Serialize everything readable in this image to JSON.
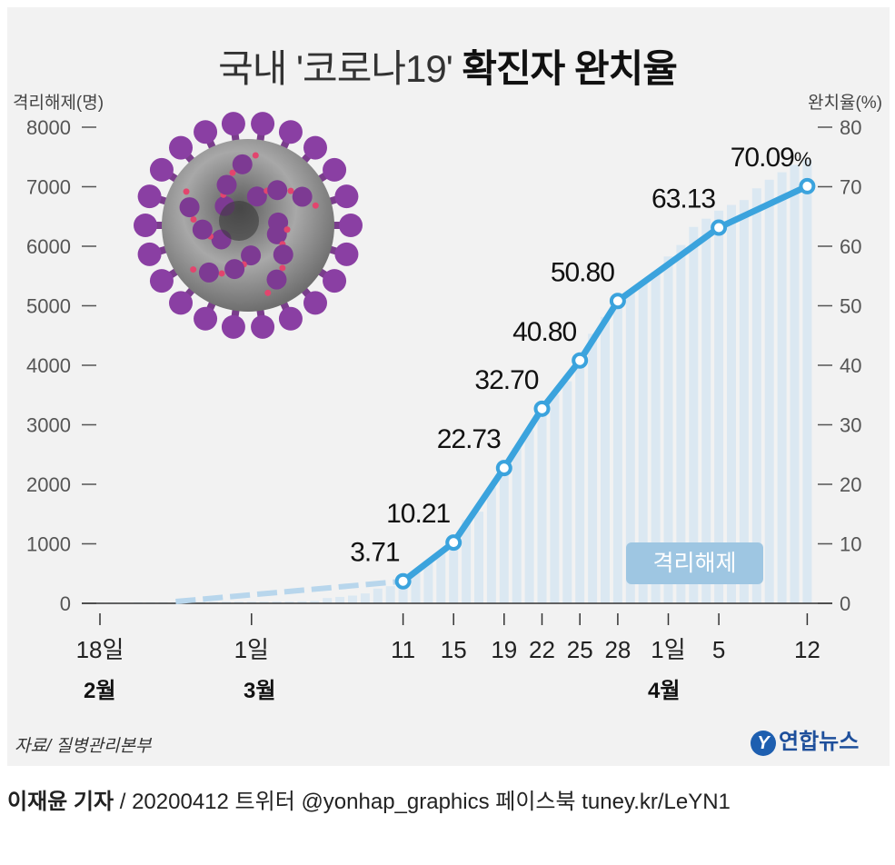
{
  "title": {
    "light": "국내 '코로나19'",
    "bold": "확진자 완치율"
  },
  "left_axis_title": "격리해제(명)",
  "right_axis_title": "완치율(%)",
  "badge_label": "격리해제",
  "source": "자료/ 질병관리본부",
  "logo": {
    "mark": "Y",
    "text": "연합뉴스"
  },
  "footer": {
    "author": "이재윤 기자",
    "rest": " / 20200412   트위터 @yonhap_graphics  페이스북 tuney.kr/LeYN1"
  },
  "months": {
    "feb": "2월",
    "mar": "3월",
    "apr": "4월"
  },
  "chart_data": {
    "type": "bar+line",
    "title": "국내 '코로나19' 확진자 완치율",
    "x_ticks": [
      {
        "day": 0,
        "label": "18일"
      },
      {
        "day": 12,
        "label": "1일"
      },
      {
        "day": 24,
        "label": "11"
      },
      {
        "day": 28,
        "label": "15"
      },
      {
        "day": 32,
        "label": "19"
      },
      {
        "day": 35,
        "label": "22"
      },
      {
        "day": 38,
        "label": "25"
      },
      {
        "day": 41,
        "label": "28"
      },
      {
        "day": 45,
        "label": "1일"
      },
      {
        "day": 49,
        "label": "5"
      },
      {
        "day": 56,
        "label": "12"
      }
    ],
    "left_axis": {
      "label": "격리해제(명)",
      "min": 0,
      "max": 8000,
      "ticks": [
        0,
        1000,
        2000,
        3000,
        4000,
        5000,
        6000,
        7000,
        8000
      ]
    },
    "right_axis": {
      "label": "완치율(%)",
      "min": 0,
      "max": 80,
      "ticks": [
        0,
        10,
        20,
        30,
        40,
        50,
        60,
        70,
        80
      ]
    },
    "bars": {
      "name": "격리해제",
      "values": [
        12,
        12,
        12,
        16,
        16,
        17,
        18,
        22,
        22,
        24,
        26,
        27,
        27,
        28,
        30,
        30,
        34,
        41,
        88,
        108,
        130,
        166,
        247,
        288,
        333,
        510,
        714,
        834,
        1137,
        1401,
        1540,
        1947,
        2233,
        2612,
        2909,
        3166,
        3507,
        3730,
        4144,
        4528,
        4811,
        5033,
        5228,
        5408,
        5567,
        5828,
        6021,
        6325,
        6463,
        6598,
        6694,
        6776,
        6973,
        7117,
        7243,
        7368,
        7447
      ]
    },
    "line": {
      "name": "완치율",
      "dashed_segment": {
        "from_day": 6,
        "to_day": 24
      },
      "points": [
        {
          "day": 24,
          "value": 3.71,
          "label": "3.71"
        },
        {
          "day": 28,
          "value": 10.21,
          "label": "10.21"
        },
        {
          "day": 32,
          "value": 22.73,
          "label": "22.73"
        },
        {
          "day": 35,
          "value": 32.7,
          "label": "32.70"
        },
        {
          "day": 38,
          "value": 40.8,
          "label": "40.80"
        },
        {
          "day": 41,
          "value": 50.8,
          "label": "50.80"
        },
        {
          "day": 49,
          "value": 63.13,
          "label": "63.13"
        },
        {
          "day": 56,
          "value": 70.09,
          "label": "70.09",
          "suffix": "%"
        }
      ]
    },
    "colors": {
      "line": "#3ba3dd",
      "bar": "#dbe8f2",
      "axis": "#333333",
      "badge": "#9ec6e2"
    }
  }
}
